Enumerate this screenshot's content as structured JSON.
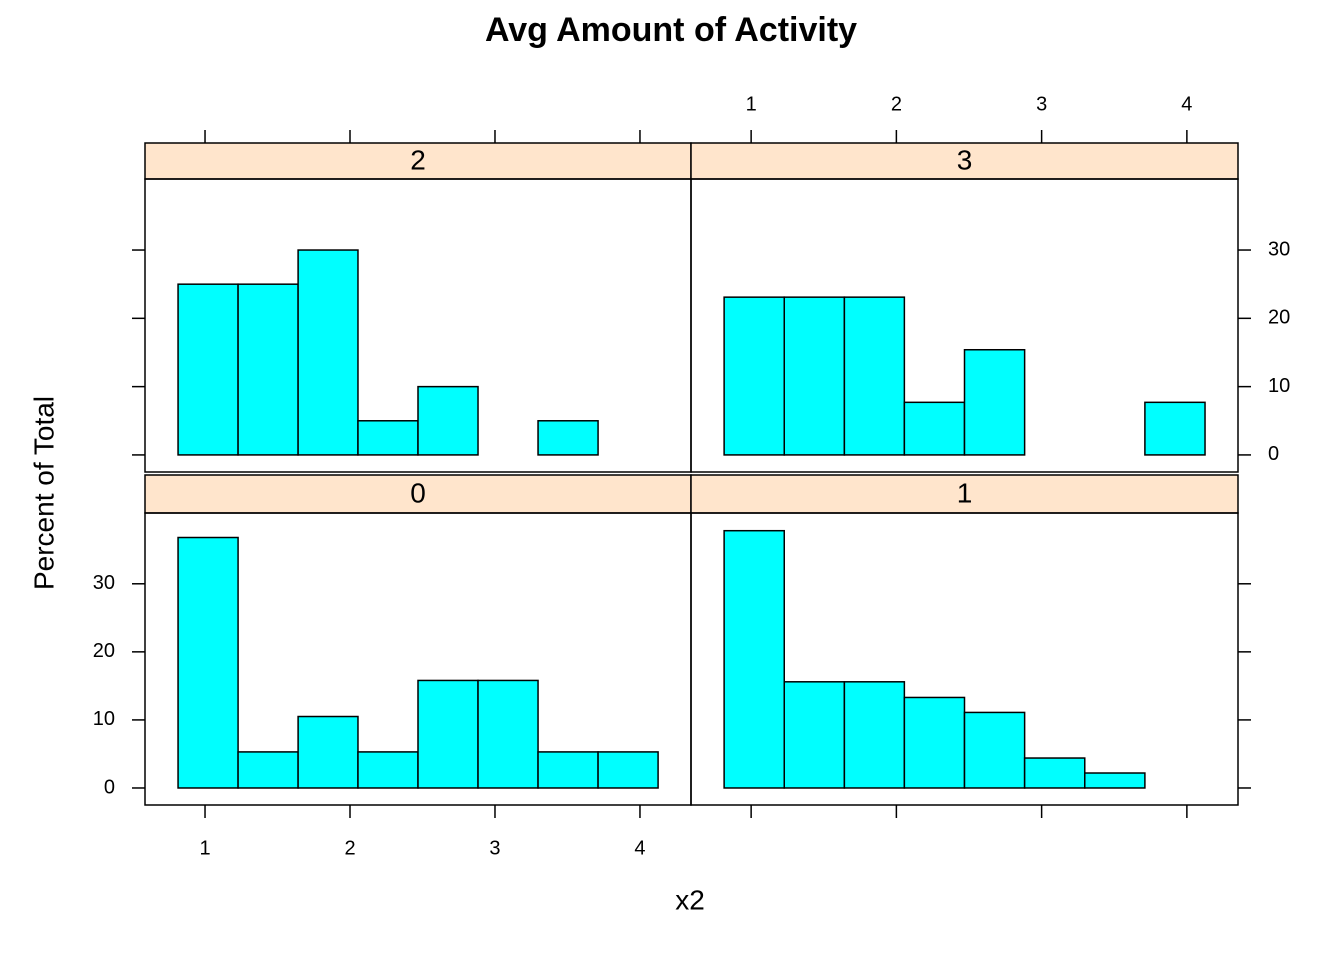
{
  "chart_data": {
    "type": "histogram",
    "title": "Avg Amount of Activity",
    "xlabel": "x2",
    "ylabel": "Percent of Total",
    "bins": [
      0.814,
      1.228,
      1.642,
      2.055,
      2.469,
      2.883,
      3.297,
      3.711,
      4.125
    ],
    "xlim": [
      0.586,
      4.352
    ],
    "ylim": [
      -2.5,
      40.4
    ],
    "xticks": [
      1,
      2,
      3,
      4
    ],
    "yticks": [
      0,
      10,
      20,
      30
    ],
    "color": "#00ffff",
    "strip_color": "#ffe5cc",
    "panels": [
      {
        "name": "2",
        "values": [
          25,
          25,
          30,
          5,
          10,
          0,
          5,
          0
        ]
      },
      {
        "name": "3",
        "values": [
          23.1,
          23.1,
          23.1,
          7.7,
          15.4,
          0,
          0,
          7.7
        ]
      },
      {
        "name": "0",
        "values": [
          36.8,
          5.3,
          10.5,
          5.3,
          15.8,
          15.8,
          5.3,
          5.3
        ]
      },
      {
        "name": "1",
        "values": [
          37.8,
          15.6,
          15.6,
          13.3,
          11.1,
          4.4,
          2.2,
          0
        ]
      }
    ]
  }
}
